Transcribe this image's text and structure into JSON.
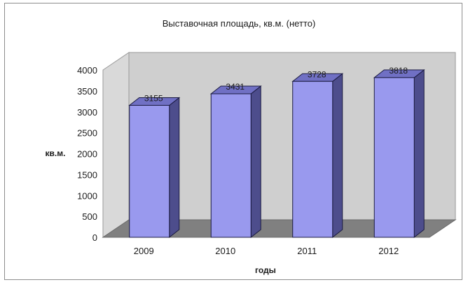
{
  "chart_data": {
    "type": "bar",
    "title": "Выставочная площадь, кв.м. (нетто)",
    "xlabel": "годы",
    "ylabel": "кв.м.",
    "categories": [
      "2009",
      "2010",
      "2011",
      "2012"
    ],
    "values": [
      3155,
      3431,
      3728,
      3818
    ],
    "data_labels": [
      "3155",
      "3431",
      "3728",
      "3818"
    ],
    "ylim": [
      0,
      4000
    ],
    "yticks": [
      "0",
      "500",
      "1000",
      "1500",
      "2000",
      "2500",
      "3000",
      "3500",
      "4000"
    ],
    "grid": false,
    "legend": "none",
    "style": "3d-column"
  },
  "colors": {
    "bar_front": "#9999ee",
    "bar_side": "#4d4d8c",
    "bar_top": "#7070c4",
    "back_wall": "#cfcfcf",
    "floor": "#808080",
    "side_wall": "#d9d9d9"
  }
}
